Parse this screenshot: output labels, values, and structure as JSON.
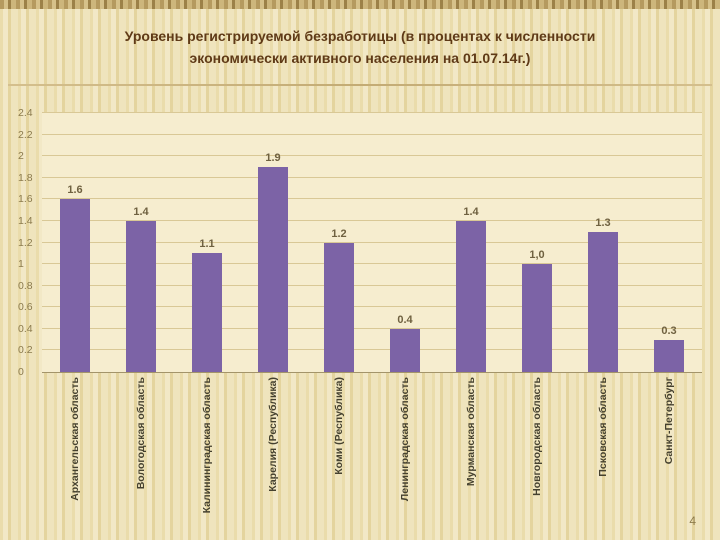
{
  "title": {
    "line1": "Уровень регистрируемой безработицы (в процентах к численности",
    "line2": "экономически активного населения на 01.07.14г.)"
  },
  "page": {
    "number": "4"
  },
  "chart_data": {
    "type": "bar",
    "title": "Уровень регистрируемой безработицы (в процентах к численности экономически активного населения на 01.07.14г.)",
    "categories": [
      "Архангельская область",
      "Вологодская область",
      "Калининградская область",
      "Карелия (Республика)",
      "Коми (Республика)",
      "Ленинградская область",
      "Мурманская область",
      "Новгородская область",
      "Псковская область",
      "Санкт-Петербург"
    ],
    "values": [
      1.6,
      1.4,
      1.1,
      1.9,
      1.2,
      0.4,
      1.4,
      1.0,
      1.3,
      0.3
    ],
    "labels": [
      "1.6",
      "1.4",
      "1.1",
      "1.9",
      "1.2",
      "0.4",
      "1.4",
      "1,0",
      "1.3",
      "0.3"
    ],
    "xlabel": "",
    "ylabel": "",
    "ylim": [
      0,
      2.4
    ],
    "yticks": [
      "0",
      "0.2",
      "0.4",
      "0.6",
      "0.8",
      "1",
      "1.2",
      "1.4",
      "1.6",
      "1.8",
      "2",
      "2.2",
      "2.4"
    ],
    "grid": true,
    "legend": false,
    "bar_color": "#7c63a6",
    "plot_background": "#f6edcf",
    "gridline_color": "#d9c896"
  }
}
